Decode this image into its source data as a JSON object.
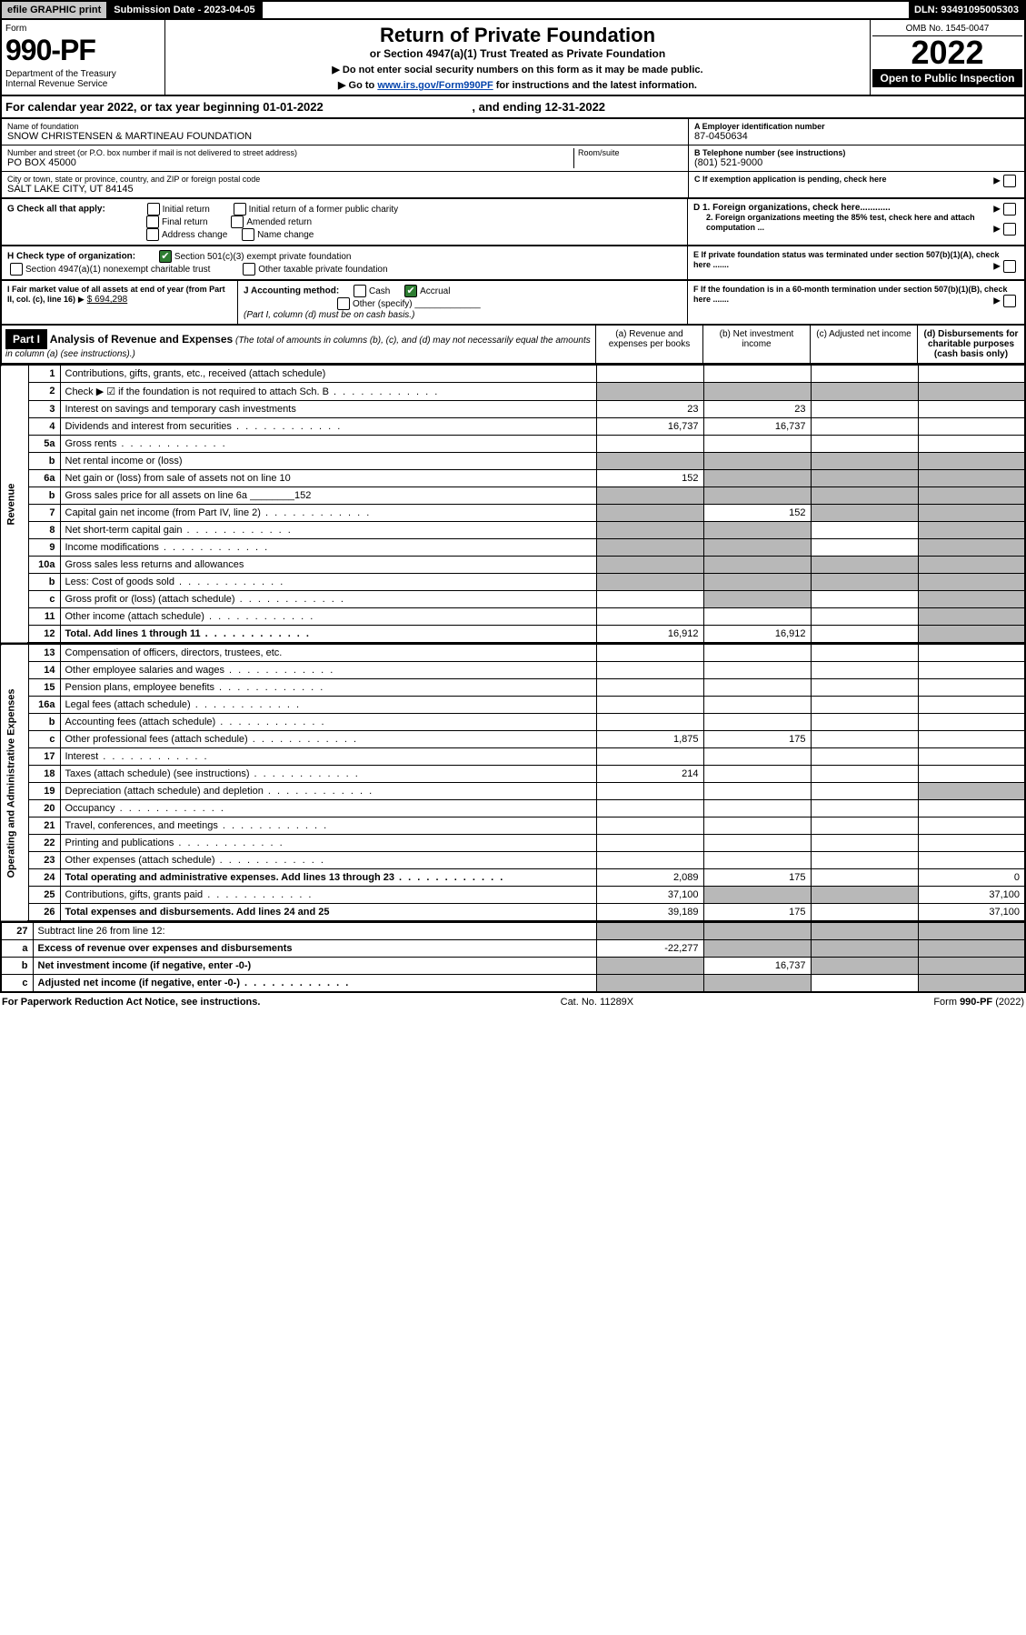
{
  "topbar": {
    "efile": "efile GRAPHIC print",
    "submission": "Submission Date - 2023-04-05",
    "dln": "DLN: 93491095005303"
  },
  "header": {
    "form_label": "Form",
    "form_num": "990-PF",
    "dept": "Department of the Treasury\nInternal Revenue Service",
    "title": "Return of Private Foundation",
    "subtitle": "or Section 4947(a)(1) Trust Treated as Private Foundation",
    "instr1": "▶ Do not enter social security numbers on this form as it may be made public.",
    "instr2_pre": "▶ Go to ",
    "instr2_link": "www.irs.gov/Form990PF",
    "instr2_post": " for instructions and the latest information.",
    "omb": "OMB No. 1545-0047",
    "year": "2022",
    "open": "Open to Public Inspection"
  },
  "calyear": {
    "text_pre": "For calendar year 2022, or tax year beginning ",
    "begin": "01-01-2022",
    "text_mid": " , and ending ",
    "end": "12-31-2022"
  },
  "info": {
    "name_label": "Name of foundation",
    "name": "SNOW CHRISTENSEN & MARTINEAU FOUNDATION",
    "ein_label": "A Employer identification number",
    "ein": "87-0450634",
    "addr_label": "Number and street (or P.O. box number if mail is not delivered to street address)",
    "addr": "PO BOX 45000",
    "room_label": "Room/suite",
    "phone_label": "B Telephone number (see instructions)",
    "phone": "(801) 521-9000",
    "city_label": "City or town, state or province, country, and ZIP or foreign postal code",
    "city": "SALT LAKE CITY, UT  84145",
    "c_label": "C If exemption application is pending, check here",
    "g_label": "G Check all that apply:",
    "g_opts": [
      "Initial return",
      "Initial return of a former public charity",
      "Final return",
      "Amended return",
      "Address change",
      "Name change"
    ],
    "d1": "D 1. Foreign organizations, check here............",
    "d2": "2. Foreign organizations meeting the 85% test, check here and attach computation ...",
    "h_label": "H Check type of organization:",
    "h_opt1": "Section 501(c)(3) exempt private foundation",
    "h_opt2": "Section 4947(a)(1) nonexempt charitable trust",
    "h_opt3": "Other taxable private foundation",
    "e_label": "E If private foundation status was terminated under section 507(b)(1)(A), check here .......",
    "i_label": "I Fair market value of all assets at end of year (from Part II, col. (c), line 16)",
    "i_value": "$  694,298",
    "j_label": "J Accounting method:",
    "j_cash": "Cash",
    "j_accrual": "Accrual",
    "j_other": "Other (specify)",
    "j_note": "(Part I, column (d) must be on cash basis.)",
    "f_label": "F  If the foundation is in a 60-month termination under section 507(b)(1)(B), check here ......."
  },
  "part1": {
    "badge": "Part I",
    "title": "Analysis of Revenue and Expenses",
    "note": " (The total of amounts in columns (b), (c), and (d) may not necessarily equal the amounts in column (a) (see instructions).)",
    "col_a": "(a)   Revenue and expenses per books",
    "col_b": "(b)   Net investment income",
    "col_c": "(c)   Adjusted net income",
    "col_d": "(d)   Disbursements for charitable purposes (cash basis only)"
  },
  "sidebar": {
    "revenue": "Revenue",
    "opex": "Operating and Administrative Expenses"
  },
  "rows": [
    {
      "n": "1",
      "d": "Contributions, gifts, grants, etc., received (attach schedule)",
      "a": "",
      "b": "",
      "c": "",
      "dd": "",
      "sa": false,
      "sb": false,
      "sc": false,
      "sd": false
    },
    {
      "n": "2",
      "d": "Check ▶ ☑ if the foundation is not required to attach Sch. B",
      "a": "",
      "b": "",
      "c": "",
      "dd": "",
      "sa": true,
      "sb": true,
      "sc": true,
      "sd": true,
      "dots": true
    },
    {
      "n": "3",
      "d": "Interest on savings and temporary cash investments",
      "a": "23",
      "b": "23",
      "c": "",
      "dd": ""
    },
    {
      "n": "4",
      "d": "Dividends and interest from securities",
      "a": "16,737",
      "b": "16,737",
      "c": "",
      "dd": "",
      "dots": true
    },
    {
      "n": "5a",
      "d": "Gross rents",
      "a": "",
      "b": "",
      "c": "",
      "dd": "",
      "dots": true
    },
    {
      "n": "b",
      "d": "Net rental income or (loss)",
      "a": "",
      "b": "",
      "c": "",
      "dd": "",
      "sa": true,
      "sb": true,
      "sc": true,
      "sd": true
    },
    {
      "n": "6a",
      "d": "Net gain or (loss) from sale of assets not on line 10",
      "a": "152",
      "b": "",
      "c": "",
      "dd": "",
      "sb": true,
      "sc": true,
      "sd": true
    },
    {
      "n": "b",
      "d": "Gross sales price for all assets on line 6a ________152",
      "a": "",
      "b": "",
      "c": "",
      "dd": "",
      "sa": true,
      "sb": true,
      "sc": true,
      "sd": true
    },
    {
      "n": "7",
      "d": "Capital gain net income (from Part IV, line 2)",
      "a": "",
      "b": "152",
      "c": "",
      "dd": "",
      "sa": true,
      "sc": true,
      "sd": true,
      "dots": true
    },
    {
      "n": "8",
      "d": "Net short-term capital gain",
      "a": "",
      "b": "",
      "c": "",
      "dd": "",
      "sa": true,
      "sb": true,
      "sd": true,
      "dots": true
    },
    {
      "n": "9",
      "d": "Income modifications",
      "a": "",
      "b": "",
      "c": "",
      "dd": "",
      "sa": true,
      "sb": true,
      "sd": true,
      "dots": true
    },
    {
      "n": "10a",
      "d": "Gross sales less returns and allowances",
      "a": "",
      "b": "",
      "c": "",
      "dd": "",
      "sa": true,
      "sb": true,
      "sc": true,
      "sd": true
    },
    {
      "n": "b",
      "d": "Less: Cost of goods sold",
      "a": "",
      "b": "",
      "c": "",
      "dd": "",
      "sa": true,
      "sb": true,
      "sc": true,
      "sd": true,
      "dots": true
    },
    {
      "n": "c",
      "d": "Gross profit or (loss) (attach schedule)",
      "a": "",
      "b": "",
      "c": "",
      "dd": "",
      "sb": true,
      "sd": true,
      "dots": true
    },
    {
      "n": "11",
      "d": "Other income (attach schedule)",
      "a": "",
      "b": "",
      "c": "",
      "dd": "",
      "sd": true,
      "dots": true
    },
    {
      "n": "12",
      "d": "Total. Add lines 1 through 11",
      "a": "16,912",
      "b": "16,912",
      "c": "",
      "dd": "",
      "bold": true,
      "sd": true,
      "dots": true
    }
  ],
  "rows2": [
    {
      "n": "13",
      "d": "Compensation of officers, directors, trustees, etc.",
      "a": "",
      "b": "",
      "c": "",
      "dd": ""
    },
    {
      "n": "14",
      "d": "Other employee salaries and wages",
      "a": "",
      "b": "",
      "c": "",
      "dd": "",
      "dots": true
    },
    {
      "n": "15",
      "d": "Pension plans, employee benefits",
      "a": "",
      "b": "",
      "c": "",
      "dd": "",
      "dots": true
    },
    {
      "n": "16a",
      "d": "Legal fees (attach schedule)",
      "a": "",
      "b": "",
      "c": "",
      "dd": "",
      "dots": true
    },
    {
      "n": "b",
      "d": "Accounting fees (attach schedule)",
      "a": "",
      "b": "",
      "c": "",
      "dd": "",
      "dots": true
    },
    {
      "n": "c",
      "d": "Other professional fees (attach schedule)",
      "a": "1,875",
      "b": "175",
      "c": "",
      "dd": "",
      "dots": true
    },
    {
      "n": "17",
      "d": "Interest",
      "a": "",
      "b": "",
      "c": "",
      "dd": "",
      "dots": true
    },
    {
      "n": "18",
      "d": "Taxes (attach schedule) (see instructions)",
      "a": "214",
      "b": "",
      "c": "",
      "dd": "",
      "dots": true
    },
    {
      "n": "19",
      "d": "Depreciation (attach schedule) and depletion",
      "a": "",
      "b": "",
      "c": "",
      "dd": "",
      "sd": true,
      "dots": true
    },
    {
      "n": "20",
      "d": "Occupancy",
      "a": "",
      "b": "",
      "c": "",
      "dd": "",
      "dots": true
    },
    {
      "n": "21",
      "d": "Travel, conferences, and meetings",
      "a": "",
      "b": "",
      "c": "",
      "dd": "",
      "dots": true
    },
    {
      "n": "22",
      "d": "Printing and publications",
      "a": "",
      "b": "",
      "c": "",
      "dd": "",
      "dots": true
    },
    {
      "n": "23",
      "d": "Other expenses (attach schedule)",
      "a": "",
      "b": "",
      "c": "",
      "dd": "",
      "dots": true
    },
    {
      "n": "24",
      "d": "Total operating and administrative expenses. Add lines 13 through 23",
      "a": "2,089",
      "b": "175",
      "c": "",
      "dd": "0",
      "bold": true,
      "dots": true
    },
    {
      "n": "25",
      "d": "Contributions, gifts, grants paid",
      "a": "37,100",
      "b": "",
      "c": "",
      "dd": "37,100",
      "sb": true,
      "sc": true,
      "dots": true
    },
    {
      "n": "26",
      "d": "Total expenses and disbursements. Add lines 24 and 25",
      "a": "39,189",
      "b": "175",
      "c": "",
      "dd": "37,100",
      "bold": true
    }
  ],
  "rows3": [
    {
      "n": "27",
      "d": "Subtract line 26 from line 12:",
      "a": "",
      "b": "",
      "c": "",
      "dd": "",
      "sa": true,
      "sb": true,
      "sc": true,
      "sd": true
    },
    {
      "n": "a",
      "d": "Excess of revenue over expenses and disbursements",
      "a": "-22,277",
      "b": "",
      "c": "",
      "dd": "",
      "bold": true,
      "sb": true,
      "sc": true,
      "sd": true
    },
    {
      "n": "b",
      "d": "Net investment income (if negative, enter -0-)",
      "a": "",
      "b": "16,737",
      "c": "",
      "dd": "",
      "bold": true,
      "sa": true,
      "sc": true,
      "sd": true
    },
    {
      "n": "c",
      "d": "Adjusted net income (if negative, enter -0-)",
      "a": "",
      "b": "",
      "c": "",
      "dd": "",
      "bold": true,
      "sa": true,
      "sb": true,
      "sd": true,
      "dots": true
    }
  ],
  "footer": {
    "left": "For Paperwork Reduction Act Notice, see instructions.",
    "mid": "Cat. No. 11289X",
    "right": "Form 990-PF (2022)"
  }
}
